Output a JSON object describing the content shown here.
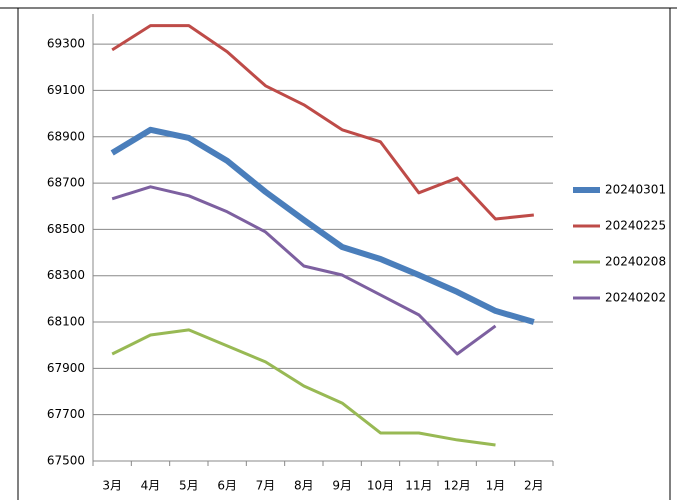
{
  "chart_data": {
    "type": "line",
    "categories": [
      "3月",
      "4月",
      "5月",
      "6月",
      "7月",
      "8月",
      "9月",
      "10月",
      "11月",
      "12月",
      "1月",
      "2月"
    ],
    "series": [
      {
        "name": "20240301",
        "color": "#4a7ebb",
        "line_width": 6,
        "values": [
          68830,
          68930,
          68895,
          68796,
          68662,
          68541,
          68424,
          68372,
          68303,
          68230,
          68148,
          68100
        ]
      },
      {
        "name": "20240225",
        "color": "#be4b48",
        "line_width": 3,
        "values": [
          69275,
          69380,
          69380,
          69267,
          69120,
          69038,
          68930,
          68878,
          68658,
          68722,
          68545,
          68562
        ]
      },
      {
        "name": "20240208",
        "color": "#98b954",
        "line_width": 3,
        "values": [
          67962,
          68044,
          68066,
          67997,
          67928,
          67824,
          67750,
          67621,
          67621,
          67591,
          67569,
          null
        ]
      },
      {
        "name": "20240202",
        "color": "#7d60a0",
        "line_width": 3,
        "values": [
          68632,
          68684,
          68645,
          68576,
          68489,
          68342,
          68303,
          68217,
          68131,
          67962,
          68083,
          null
        ]
      }
    ],
    "ylim": [
      67500,
      69430
    ],
    "yticks": [
      67500,
      67700,
      67900,
      68100,
      68300,
      68500,
      68700,
      68900,
      69100,
      69300
    ],
    "grid": true,
    "legend": "right"
  }
}
